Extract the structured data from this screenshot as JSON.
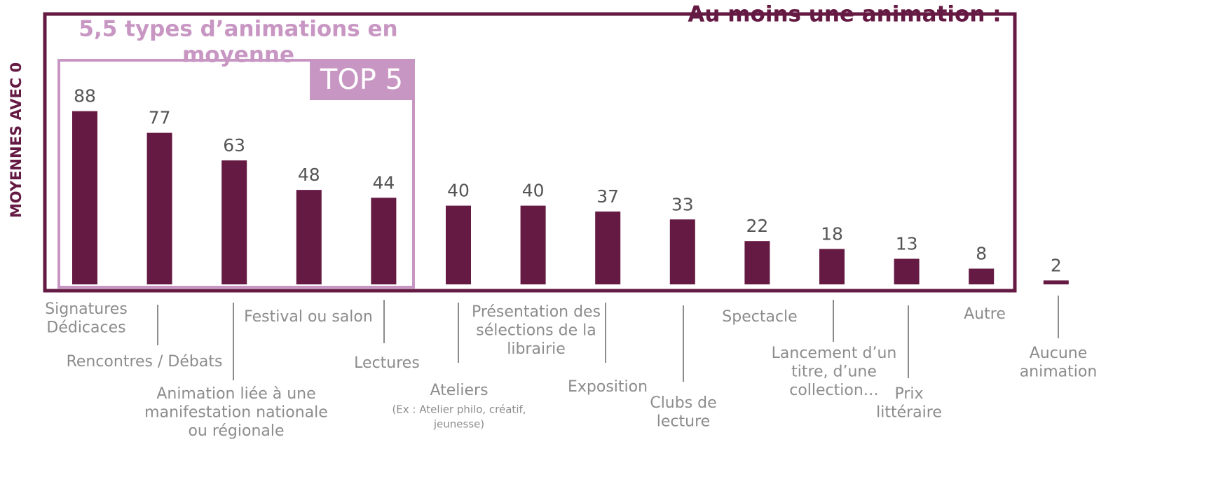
{
  "chart_data": {
    "type": "bar",
    "title": "Au moins une animation :",
    "subtitle": [
      "5,5 types d’animations en",
      "moyenne"
    ],
    "highlight_label": "TOP 5",
    "y_label": "MOYENNES AVEC 0",
    "color": "#651a43",
    "categories": [
      [
        "Signatures",
        "Dédicaces"
      ],
      [
        "Rencontres / Débats"
      ],
      [
        "Animation liée à une",
        "manifestation nationale",
        "ou régionale"
      ],
      [
        "Festival ou salon"
      ],
      [
        "Lectures"
      ],
      [
        "Ateliers"
      ],
      [
        "Présentation des",
        "sélections de la",
        "librairie"
      ],
      [
        "Exposition"
      ],
      [
        "Clubs de",
        "lecture"
      ],
      [
        "Spectacle"
      ],
      [
        "Lancement d’un",
        "titre, d’une",
        "collection…"
      ],
      [
        "Prix",
        "littéraire"
      ],
      [
        "Autre"
      ],
      [
        "Aucune",
        "animation"
      ]
    ],
    "category_notes": [
      null,
      null,
      null,
      null,
      null,
      [
        "(Ex : Atelier philo, créatif,",
        "jeunesse)"
      ],
      null,
      null,
      null,
      null,
      null,
      null,
      null,
      null
    ],
    "values": [
      88,
      77,
      63,
      48,
      44,
      40,
      40,
      37,
      33,
      22,
      18,
      13,
      8,
      2
    ]
  }
}
